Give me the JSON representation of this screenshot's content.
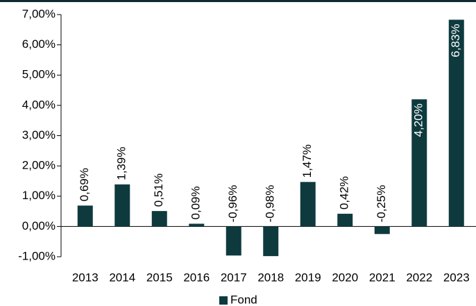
{
  "chart_data": {
    "type": "bar",
    "categories": [
      "2013",
      "2014",
      "2015",
      "2016",
      "2017",
      "2018",
      "2019",
      "2020",
      "2021",
      "2022",
      "2023"
    ],
    "series": [
      {
        "name": "Fond",
        "color": "#0e3a3e",
        "values": [
          0.69,
          1.39,
          0.51,
          0.09,
          -0.96,
          -0.98,
          1.47,
          0.42,
          -0.25,
          4.2,
          6.83
        ],
        "value_labels": [
          "0,69%",
          "1,39%",
          "0,51%",
          "0,09%",
          "-0,96%",
          "-0,98%",
          "1,47%",
          "0,42%",
          "-0,25%",
          "4,20%",
          "6,83%"
        ]
      }
    ],
    "ylim": [
      -1,
      7
    ],
    "yticks": [
      {
        "value": -1,
        "label": "-1,00%"
      },
      {
        "value": 0,
        "label": "0,00%"
      },
      {
        "value": 1,
        "label": "1,00%"
      },
      {
        "value": 2,
        "label": "2,00%"
      },
      {
        "value": 3,
        "label": "3,00%"
      },
      {
        "value": 4,
        "label": "4,00%"
      },
      {
        "value": 5,
        "label": "5,00%"
      },
      {
        "value": 6,
        "label": "6,00%"
      },
      {
        "value": 7,
        "label": "7,00%"
      }
    ],
    "legend": "bottom"
  }
}
